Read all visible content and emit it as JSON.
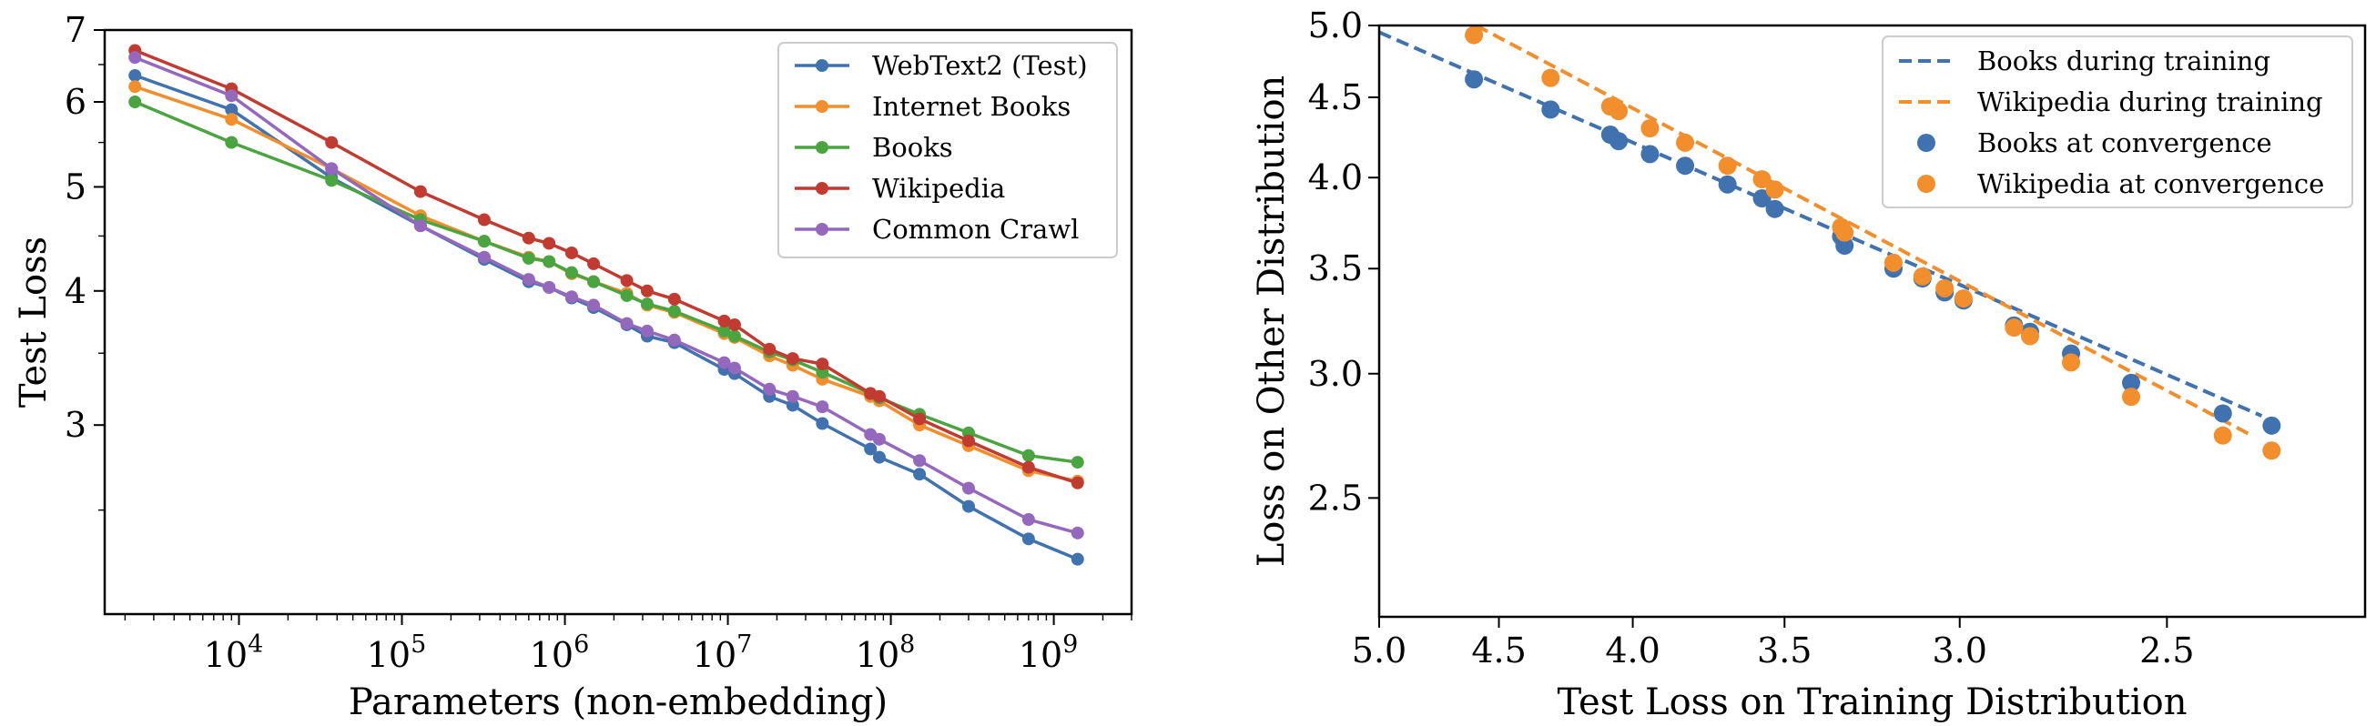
{
  "chart_data": [
    {
      "type": "line",
      "xlabel": "Parameters (non-embedding)",
      "ylabel": "Test Loss",
      "xscale": "log",
      "yscale": "log",
      "xlim": [
        1500,
        3000000000
      ],
      "ylim": [
        2.0,
        7.0
      ],
      "xticks": [
        10000,
        100000,
        1000000,
        10000000,
        100000000,
        1000000000
      ],
      "xtick_labels": [
        "10",
        "10",
        "10",
        "10",
        "10",
        "10"
      ],
      "xtick_exponents": [
        "4",
        "5",
        "6",
        "7",
        "8",
        "9"
      ],
      "yticks": [
        3,
        4,
        5,
        6,
        7
      ],
      "ytick_labels": [
        "3",
        "4",
        "5",
        "6",
        "7"
      ],
      "legend_position": "top-right",
      "series": [
        {
          "name": "WebText2 (Test)",
          "color": "#3f72af",
          "x": [
            2300,
            9000,
            37000,
            130000,
            320000,
            600000,
            800000,
            1100000,
            1500000,
            2400000,
            3200000,
            4700000,
            9500000,
            11000000,
            18000000,
            25000000,
            38000000,
            75000000,
            85000000,
            150000000,
            300000000,
            700000000,
            1400000000
          ],
          "y": [
            6.35,
            5.9,
            5.1,
            4.6,
            4.28,
            4.08,
            4.03,
            3.94,
            3.86,
            3.72,
            3.63,
            3.58,
            3.38,
            3.35,
            3.19,
            3.13,
            3.01,
            2.85,
            2.8,
            2.7,
            2.52,
            2.35,
            2.25
          ]
        },
        {
          "name": "Internet Books",
          "color": "#f28e2b",
          "x": [
            2300,
            9000,
            37000,
            130000,
            320000,
            600000,
            800000,
            1100000,
            1500000,
            2400000,
            3200000,
            4700000,
            9500000,
            11000000,
            18000000,
            25000000,
            38000000,
            75000000,
            85000000,
            150000000,
            300000000,
            700000000,
            1400000000
          ],
          "y": [
            6.2,
            5.78,
            5.2,
            4.7,
            4.45,
            4.3,
            4.26,
            4.15,
            4.08,
            3.98,
            3.88,
            3.82,
            3.65,
            3.62,
            3.48,
            3.41,
            3.31,
            3.19,
            3.16,
            3.0,
            2.87,
            2.72,
            2.66
          ]
        },
        {
          "name": "Books",
          "color": "#4aa541",
          "x": [
            2300,
            9000,
            37000,
            130000,
            320000,
            600000,
            800000,
            1100000,
            1500000,
            2400000,
            3200000,
            4700000,
            9500000,
            11000000,
            18000000,
            25000000,
            38000000,
            75000000,
            85000000,
            150000000,
            300000000,
            700000000,
            1400000000
          ],
          "y": [
            6.0,
            5.5,
            5.07,
            4.66,
            4.45,
            4.29,
            4.26,
            4.16,
            4.08,
            3.96,
            3.89,
            3.83,
            3.67,
            3.63,
            3.51,
            3.45,
            3.36,
            3.21,
            3.18,
            3.07,
            2.95,
            2.81,
            2.77
          ]
        },
        {
          "name": "Wikipedia",
          "color": "#c23b31",
          "x": [
            2300,
            9000,
            37000,
            130000,
            320000,
            600000,
            800000,
            1100000,
            1500000,
            2400000,
            3200000,
            4700000,
            9500000,
            11000000,
            18000000,
            25000000,
            38000000,
            75000000,
            85000000,
            150000000,
            300000000,
            700000000,
            1400000000
          ],
          "y": [
            6.7,
            6.17,
            5.5,
            4.95,
            4.66,
            4.48,
            4.43,
            4.34,
            4.24,
            4.09,
            4.0,
            3.93,
            3.75,
            3.72,
            3.53,
            3.46,
            3.42,
            3.21,
            3.19,
            3.04,
            2.9,
            2.74,
            2.65
          ]
        },
        {
          "name": "Common Crawl",
          "color": "#9468bd",
          "x": [
            2300,
            9000,
            37000,
            130000,
            320000,
            600000,
            800000,
            1100000,
            1500000,
            2400000,
            3200000,
            4700000,
            9500000,
            11000000,
            18000000,
            25000000,
            38000000,
            75000000,
            85000000,
            150000000,
            300000000,
            700000000,
            1400000000
          ],
          "y": [
            6.6,
            6.08,
            5.2,
            4.6,
            4.3,
            4.1,
            4.03,
            3.95,
            3.88,
            3.73,
            3.67,
            3.6,
            3.43,
            3.39,
            3.24,
            3.19,
            3.12,
            2.94,
            2.91,
            2.78,
            2.62,
            2.45,
            2.38
          ]
        }
      ]
    },
    {
      "type": "scatter",
      "xlabel": "Test Loss on Training Distribution",
      "ylabel": "Loss on Other Distribution",
      "xscale": "log",
      "yscale": "log",
      "x_inverted": true,
      "xlim": [
        5.0,
        2.1
      ],
      "ylim": [
        2.1,
        5.0
      ],
      "xticks": [
        5.0,
        4.5,
        4.0,
        3.5,
        3.0,
        2.5
      ],
      "xtick_labels": [
        "5.0",
        "4.5",
        "4.0",
        "3.5",
        "3.0",
        "2.5"
      ],
      "yticks": [
        2.5,
        3.0,
        3.5,
        4.0,
        4.5,
        5.0
      ],
      "ytick_labels": [
        "2.5",
        "3.0",
        "3.5",
        "4.0",
        "4.5",
        "5.0"
      ],
      "legend_position": "top-right",
      "lines": [
        {
          "name": "Books during training",
          "color": "#3f72af",
          "style": "dashed",
          "x": [
            5.0,
            2.3
          ],
          "y": [
            4.95,
            2.82
          ]
        },
        {
          "name": "Wikipedia during training",
          "color": "#f28e2b",
          "style": "dashed",
          "x": [
            4.8,
            2.32
          ],
          "y": [
            5.2,
            2.74
          ]
        }
      ],
      "points": [
        {
          "name": "Books at convergence",
          "color": "#3f72af",
          "x": [
            4.6,
            4.3,
            4.08,
            4.05,
            3.94,
            3.82,
            3.68,
            3.57,
            3.53,
            3.33,
            3.32,
            3.18,
            3.1,
            3.04,
            2.99,
            2.86,
            2.82,
            2.72,
            2.58,
            2.38,
            2.28
          ],
          "y": [
            4.62,
            4.42,
            4.26,
            4.22,
            4.14,
            4.07,
            3.96,
            3.88,
            3.82,
            3.67,
            3.62,
            3.5,
            3.45,
            3.38,
            3.34,
            3.22,
            3.19,
            3.09,
            2.96,
            2.83,
            2.78
          ]
        },
        {
          "name": "Wikipedia at convergence",
          "color": "#f28e2b",
          "x": [
            4.6,
            4.3,
            4.08,
            4.05,
            3.94,
            3.82,
            3.68,
            3.57,
            3.53,
            3.33,
            3.32,
            3.18,
            3.1,
            3.04,
            2.99,
            2.86,
            2.82,
            2.72,
            2.58,
            2.38,
            2.28
          ],
          "y": [
            4.93,
            4.63,
            4.44,
            4.41,
            4.3,
            4.21,
            4.07,
            3.99,
            3.93,
            3.72,
            3.69,
            3.53,
            3.46,
            3.4,
            3.35,
            3.21,
            3.17,
            3.05,
            2.9,
            2.74,
            2.68
          ]
        }
      ]
    }
  ]
}
